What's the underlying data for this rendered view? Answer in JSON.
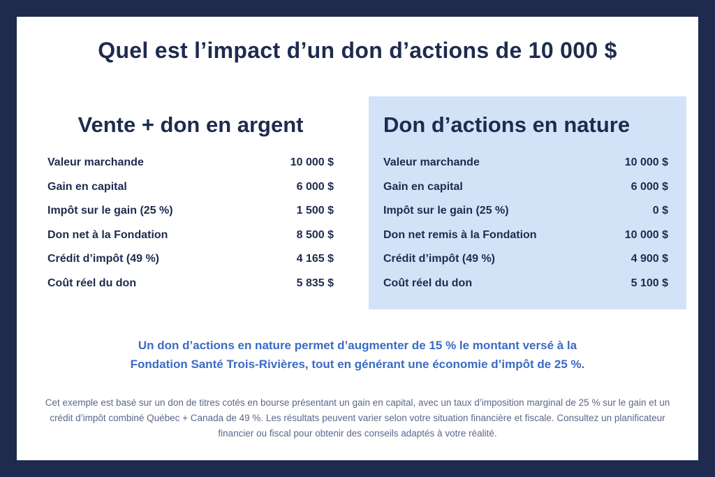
{
  "title": "Quel est l’impact d’un don d’actions de 10 000 $",
  "colors": {
    "frame_navy": "#1e2b4e",
    "panel_blue": "#d2e3f8",
    "summary_blue": "#3a6bc4",
    "disclaimer_gray_blue": "#5c668c",
    "sheet_white": "#ffffff"
  },
  "columns": {
    "left": {
      "heading": "Vente + don en argent",
      "rows": [
        {
          "label": "Valeur marchande",
          "value": "10 000 $"
        },
        {
          "label": "Gain en capital",
          "value": "6 000 $"
        },
        {
          "label": "Impôt sur le gain (25 %)",
          "value": "1 500 $"
        },
        {
          "label": "Don net à la Fondation",
          "value": "8 500 $"
        },
        {
          "label": "Crédit d’impôt (49 %)",
          "value": "4 165 $"
        },
        {
          "label": "Coût réel du don",
          "value": "5 835 $"
        }
      ]
    },
    "right": {
      "heading": "Don d’actions en nature",
      "rows": [
        {
          "label": "Valeur marchande",
          "value": "10 000 $"
        },
        {
          "label": "Gain en capital",
          "value": "6 000 $"
        },
        {
          "label": "Impôt sur le gain (25 %)",
          "value": "0 $"
        },
        {
          "label": "Don net remis à la Fondation",
          "value": "10 000 $"
        },
        {
          "label": "Crédit d’impôt (49 %)",
          "value": "4 900 $"
        },
        {
          "label": "Coût réel du don",
          "value": "5 100 $"
        }
      ]
    }
  },
  "summary": {
    "lines": [
      "Un don d’actions en nature permet d’augmenter de 15 % le montant versé à la",
      "Fondation Santé Trois-Rivières, tout en générant une économie d’impôt de 25 %."
    ]
  },
  "disclaimer": {
    "lines": [
      "Cet exemple est basé sur un don de titres cotés en bourse présentant un gain en capital, avec un taux d’imposition marginal de 25 % sur le gain et un",
      "crédit d’impôt combiné Québec + Canada de 49 %. Les résultats peuvent varier selon votre situation financière et fiscale. Consultez un planificateur",
      "financier ou fiscal pour obtenir des conseils adaptés à votre réalité."
    ]
  }
}
